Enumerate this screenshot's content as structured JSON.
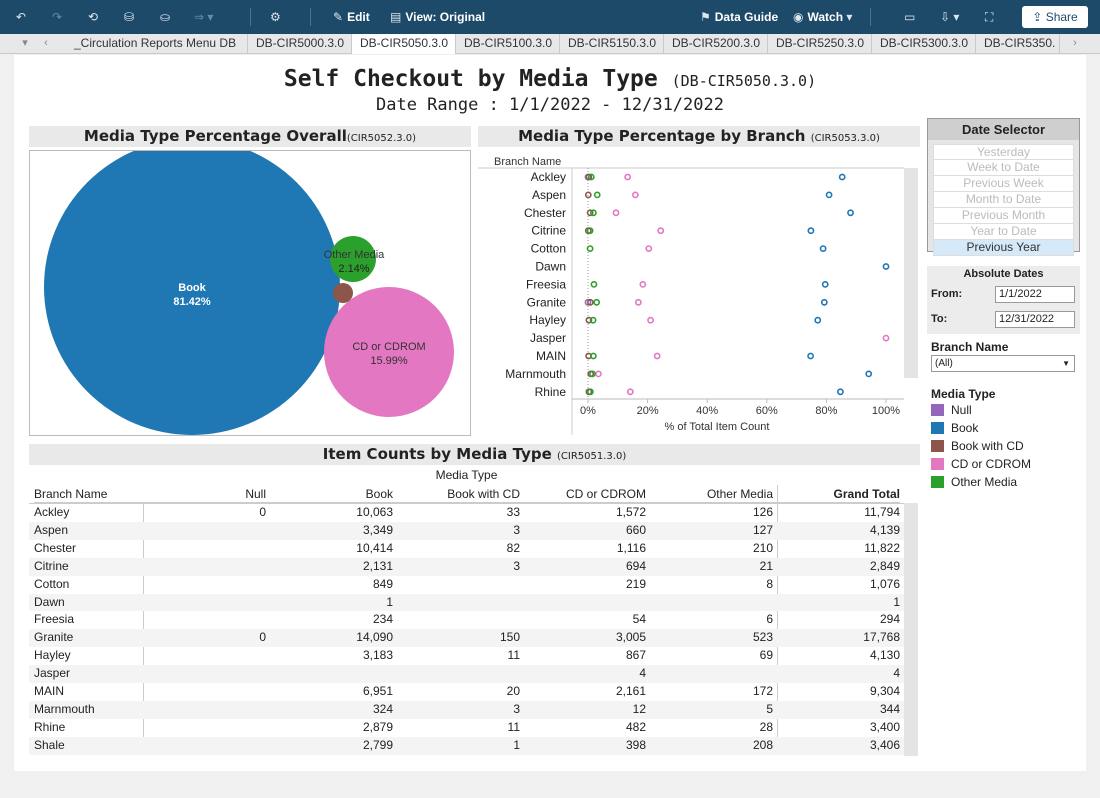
{
  "toolbar": {
    "edit": "Edit",
    "view": "View: Original",
    "data_guide": "Data Guide",
    "watch": "Watch",
    "share": "Share"
  },
  "tabs": [
    "_Circulation Reports Menu DB",
    "DB-CIR5000.3.0",
    "DB-CIR5050.3.0",
    "DB-CIR5100.3.0",
    "DB-CIR5150.3.0",
    "DB-CIR5200.3.0",
    "DB-CIR5250.3.0",
    "DB-CIR5300.3.0",
    "DB-CIR5350."
  ],
  "title": {
    "main": "Self Checkout by Media Type",
    "code": "(DB-CIR5050.3.0)",
    "range": "Date Range : 1/1/2022 - 12/31/2022"
  },
  "colors": {
    "Null": "#9467bd",
    "Book": "#1f77b4",
    "Book with CD": "#8c564b",
    "CD or CDROM": "#e377c2",
    "Other Media": "#2ca02c"
  },
  "overall": {
    "title": "Media Type Percentage Overall",
    "code": "(CIR5052.3.0)",
    "bubbles": [
      {
        "name": "Book",
        "pct": "81.42%"
      },
      {
        "name": "CD or CDROM",
        "pct": "15.99%"
      },
      {
        "name": "Other Media",
        "pct": "2.14%"
      },
      {
        "name": "Book with CD",
        "pct": ""
      }
    ]
  },
  "by_branch": {
    "title": "Media Type Percentage by Branch",
    "code": "(CIR5053.3.0)",
    "row_header": "Branch Name",
    "xlabel": "% of Total Item Count",
    "ticks": [
      "0%",
      "20%",
      "40%",
      "60%",
      "80%",
      "100%"
    ]
  },
  "chart_data": {
    "type": "scatter",
    "title": "Media Type Percentage by Branch",
    "xlabel": "% of Total Item Count",
    "xlim": [
      0,
      100
    ],
    "categories": [
      "Ackley",
      "Aspen",
      "Chester",
      "Citrine",
      "Cotton",
      "Dawn",
      "Freesia",
      "Granite",
      "Hayley",
      "Jasper",
      "MAIN",
      "Marnmouth",
      "Rhine"
    ],
    "series": [
      {
        "name": "Null",
        "values": [
          0,
          null,
          null,
          null,
          null,
          null,
          null,
          0,
          null,
          null,
          null,
          null,
          null
        ]
      },
      {
        "name": "Book",
        "values": [
          85.3,
          80.9,
          88.1,
          74.8,
          78.9,
          100,
          79.6,
          79.3,
          77.1,
          null,
          74.7,
          94.2,
          84.7
        ]
      },
      {
        "name": "Book with CD",
        "values": [
          0.3,
          0.1,
          0.7,
          0.1,
          null,
          null,
          null,
          0.8,
          0.3,
          null,
          0.2,
          0.9,
          0.3
        ]
      },
      {
        "name": "CD or CDROM",
        "values": [
          13.3,
          15.9,
          9.4,
          24.4,
          20.4,
          null,
          18.4,
          16.9,
          21.0,
          100,
          23.2,
          3.5,
          14.2
        ]
      },
      {
        "name": "Other Media",
        "values": [
          1.1,
          3.1,
          1.8,
          0.7,
          0.7,
          null,
          2.0,
          2.9,
          1.7,
          null,
          1.8,
          1.5,
          0.8
        ]
      }
    ]
  },
  "table": {
    "title": "Item Counts by Media Type",
    "code": "(CIR5051.3.0)",
    "media_type_label": "Media Type",
    "columns": [
      "Branch Name",
      "Null",
      "Book",
      "Book with CD",
      "CD or CDROM",
      "Other Media",
      "Grand Total"
    ],
    "rows": [
      [
        "Ackley",
        "0",
        "10,063",
        "33",
        "1,572",
        "126",
        "11,794"
      ],
      [
        "Aspen",
        "",
        "3,349",
        "3",
        "660",
        "127",
        "4,139"
      ],
      [
        "Chester",
        "",
        "10,414",
        "82",
        "1,116",
        "210",
        "11,822"
      ],
      [
        "Citrine",
        "",
        "2,131",
        "3",
        "694",
        "21",
        "2,849"
      ],
      [
        "Cotton",
        "",
        "849",
        "",
        "219",
        "8",
        "1,076"
      ],
      [
        "Dawn",
        "",
        "1",
        "",
        "",
        "",
        "1"
      ],
      [
        "Freesia",
        "",
        "234",
        "",
        "54",
        "6",
        "294"
      ],
      [
        "Granite",
        "0",
        "14,090",
        "150",
        "3,005",
        "523",
        "17,768"
      ],
      [
        "Hayley",
        "",
        "3,183",
        "11",
        "867",
        "69",
        "4,130"
      ],
      [
        "Jasper",
        "",
        "",
        "",
        "4",
        "",
        "4"
      ],
      [
        "MAIN",
        "",
        "6,951",
        "20",
        "2,161",
        "172",
        "9,304"
      ],
      [
        "Marnmouth",
        "",
        "324",
        "3",
        "12",
        "5",
        "344"
      ],
      [
        "Rhine",
        "",
        "2,879",
        "11",
        "482",
        "28",
        "3,400"
      ],
      [
        "Shale",
        "",
        "2,799",
        "1",
        "398",
        "208",
        "3,406"
      ]
    ]
  },
  "date_selector": {
    "title": "Date Selector",
    "options": [
      "Yesterday",
      "Week to Date",
      "Previous Week",
      "Month to Date",
      "Previous Month",
      "Year to Date",
      "Previous Year"
    ],
    "selected": "Previous Year",
    "absolute_title": "Absolute Dates",
    "from_label": "From:",
    "from": "1/1/2022",
    "to_label": "To:",
    "to": "12/31/2022"
  },
  "branch_filter": {
    "label": "Branch Name",
    "value": "(All)"
  },
  "legend": {
    "title": "Media Type",
    "items": [
      "Null",
      "Book",
      "Book with CD",
      "CD or CDROM",
      "Other Media"
    ]
  }
}
